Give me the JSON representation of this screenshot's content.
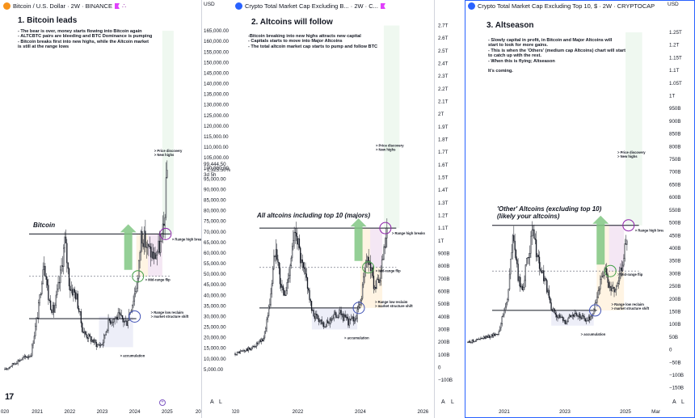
{
  "panels": [
    {
      "title": "Bitcoin / U.S. Dollar · 2W · BINANCE",
      "icon_color": "#f7931a",
      "currency": "USD",
      "heading": "1. Bitcoin leads",
      "notes": [
        "- The bear is over, money starts flowing into Bitcoin again",
        "- ALTCBTC pairs are bleeding and BTC Dominance is pumping",
        "- Bitcoin breaks first into new highs, while the Altcoin market",
        "is still at the range lows"
      ],
      "chart_label": [
        "Bitcoin"
      ],
      "price_readout": [
        "99,444.50",
        "+1,325.50%",
        "3d 5h"
      ],
      "annotations": {
        "price_discovery": [
          "> Price discovery",
          "> New highs"
        ],
        "range_high": "> Range high breaks",
        "mid_range": "> Mid-range flip",
        "range_low": [
          "> Range low reclaim",
          "> market structure shift"
        ],
        "accumulation": "> accumulation"
      },
      "scale_buttons": [
        "A",
        "L"
      ]
    },
    {
      "title": "Crypto Total Market Cap Excluding B... · 2W · C...",
      "icon_color": "#2962ff",
      "currency": "USD",
      "heading": "2. Altcoins will follow",
      "notes": [
        "-Bitcoin breaking into new highs attracts new capital",
        "- Capitals starts to move into Major Altcoins",
        "- The total altcoin market cap starts to pump and follow BTC"
      ],
      "chart_label": [
        "All altcoins including top 10 (majors)"
      ],
      "annotations": {
        "price_discovery": [
          "> Price discovery",
          "> New highs"
        ],
        "range_high": "> Range high breaks",
        "mid_range": "> Mid-range flip",
        "range_low": [
          "> Range low reclaim",
          "> market structure shift"
        ],
        "accumulation": "> accumulation"
      },
      "scale_buttons": [
        "A",
        "L"
      ]
    },
    {
      "title": "Crypto Total Market Cap Excluding Top 10, $ · 2W · CRYPTOCAP",
      "icon_color": "#2962ff",
      "currency": "USD",
      "heading": "3. Altseason",
      "notes": [
        "- Slowly capital in profit, in Bitcoin and Major Altcoins will",
        "start to look for more gains.",
        "- This is when the 'Others' (medium cap Altcoins) chart will start",
        "to catch up with the rest.",
        "- When this is flying; Altseason",
        "",
        "It's coming."
      ],
      "chart_label": [
        "'Other' Altcoins (excluding top 10)",
        "(likely your altcoins)"
      ],
      "annotations": {
        "price_discovery": [
          "> Price discovery",
          "> New highs"
        ],
        "range_high": "> Range high breaks",
        "mid_range": "> Mid-range flip",
        "range_low": [
          "> Range low reclaim",
          "> market structure shift"
        ],
        "accumulation": "> accumulation"
      },
      "scale_buttons": [
        "A",
        "L"
      ]
    }
  ],
  "chart_data": [
    {
      "type": "candlestick",
      "title": "Bitcoin / U.S. Dollar · 2W · BINANCE",
      "ylim": [
        0,
        170000
      ],
      "y_ticks": [
        165000,
        160000,
        155000,
        150000,
        145000,
        140000,
        135000,
        130000,
        125000,
        120000,
        115000,
        110000,
        105000,
        100000,
        95000,
        90000,
        85000,
        80000,
        75000,
        70000,
        65000,
        60000,
        55000,
        50000,
        45000,
        40000,
        35000,
        30000,
        25000,
        20000,
        15000,
        10000,
        5000
      ],
      "y_tick_labels": [
        "165,000.00",
        "160,000.00",
        "155,000.00",
        "150,000.00",
        "145,000.00",
        "140,000.00",
        "135,000.00",
        "130,000.00",
        "125,000.00",
        "120,000.00",
        "115,000.00",
        "110,000.00",
        "105,000.00",
        "100,000.00",
        "95,000.00",
        "90,000.00",
        "85,000.00",
        "80,000.00",
        "75,000.00",
        "70,000.00",
        "65,000.00",
        "60,000.00",
        "55,000.00",
        "50,000.00",
        "45,000.00",
        "40,000.00",
        "35,000.00",
        "30,000.00",
        "25,000.00",
        "20,000.00",
        "15,000.00",
        "10,000.00",
        "5,000.00"
      ],
      "x_ticks": [
        "020",
        "2021",
        "2022",
        "2023",
        "2024",
        "2025",
        "202"
      ],
      "x_tick_values": [
        2020.0,
        2021.0,
        2022.0,
        2023.0,
        2024.0,
        2025.0,
        2026.0
      ],
      "x_range": [
        2020.0,
        2026.0
      ],
      "range_high": 69000,
      "mid_range": 49000,
      "range_low": 29000,
      "circles": [
        {
          "x": 2024.0,
          "y": 30000,
          "color": "#3f51b5"
        },
        {
          "x": 2024.1,
          "y": 49000,
          "color": "#43a047"
        },
        {
          "x": 2024.95,
          "y": 69000,
          "color": "#8e24aa"
        }
      ],
      "zones": {
        "accumulation": [
          2022.9,
          2023.95,
          15500,
          30000
        ],
        "pre_break": [
          2024.05,
          2024.85,
          49000,
          69000
        ],
        "discovery": [
          2024.85,
          2025.2,
          69000,
          165000
        ]
      },
      "trend": [
        [
          2020.0,
          4800
        ],
        [
          2020.4,
          9000
        ],
        [
          2020.8,
          12000
        ],
        [
          2021.05,
          35000
        ],
        [
          2021.2,
          58000
        ],
        [
          2021.35,
          38000
        ],
        [
          2021.5,
          32000
        ],
        [
          2021.7,
          48000
        ],
        [
          2021.85,
          66000
        ],
        [
          2022.0,
          44000
        ],
        [
          2022.2,
          40000
        ],
        [
          2022.4,
          23000
        ],
        [
          2022.6,
          20000
        ],
        [
          2022.85,
          16500
        ],
        [
          2023.0,
          17000
        ],
        [
          2023.2,
          28000
        ],
        [
          2023.5,
          30000
        ],
        [
          2023.75,
          27000
        ],
        [
          2023.95,
          38000
        ],
        [
          2024.1,
          48000
        ],
        [
          2024.2,
          70000
        ],
        [
          2024.4,
          62000
        ],
        [
          2024.6,
          58000
        ],
        [
          2024.8,
          64000
        ],
        [
          2024.9,
          72000
        ],
        [
          2025.0,
          99000
        ]
      ]
    },
    {
      "type": "candlestick",
      "title": "Crypto Total Market Cap Excluding B... · 2W · C...",
      "ylim": [
        -150,
        2780
      ],
      "y_ticks": [
        2700,
        2600,
        2500,
        2400,
        2300,
        2200,
        2100,
        2000,
        1900,
        1800,
        1700,
        1600,
        1500,
        1400,
        1300,
        1200,
        1100,
        1000,
        900,
        800,
        700,
        600,
        500,
        400,
        300,
        200,
        100,
        0,
        -100
      ],
      "y_tick_labels": [
        "2.7T",
        "2.6T",
        "2.5T",
        "2.4T",
        "2.3T",
        "2.2T",
        "2.1T",
        "2T",
        "1.9T",
        "1.8T",
        "1.7T",
        "1.6T",
        "1.5T",
        "1.4T",
        "1.3T",
        "1.2T",
        "1.1T",
        "1T",
        "900B",
        "800B",
        "700B",
        "600B",
        "500B",
        "400B",
        "300B",
        "200B",
        "100B",
        "0",
        "−100B"
      ],
      "x_ticks": [
        "020",
        "2022",
        "2024",
        "2026"
      ],
      "x_tick_values": [
        2020.0,
        2022.0,
        2024.0,
        2026.0
      ],
      "x_range": [
        2020.0,
        2026.3
      ],
      "range_high": 1100,
      "mid_range": 790,
      "range_low": 470,
      "circles": [
        {
          "x": 2023.95,
          "y": 470,
          "color": "#3f51b5"
        },
        {
          "x": 2024.25,
          "y": 790,
          "color": "#43a047"
        },
        {
          "x": 2024.8,
          "y": 1100,
          "color": "#8e24aa"
        }
      ],
      "zones": {
        "accumulation": [
          2022.45,
          2023.9,
          300,
          470
        ],
        "pre_break": [
          2024.0,
          2024.7,
          470,
          1100
        ],
        "discovery": [
          2024.75,
          2025.25,
          1100,
          2700
        ]
      },
      "trend": [
        [
          2020.0,
          110
        ],
        [
          2020.5,
          150
        ],
        [
          2020.9,
          220
        ],
        [
          2021.1,
          500
        ],
        [
          2021.3,
          1000
        ],
        [
          2021.45,
          650
        ],
        [
          2021.6,
          560
        ],
        [
          2021.8,
          900
        ],
        [
          2021.95,
          1100
        ],
        [
          2022.1,
          820
        ],
        [
          2022.3,
          680
        ],
        [
          2022.45,
          430
        ],
        [
          2022.7,
          380
        ],
        [
          2022.9,
          330
        ],
        [
          2023.1,
          400
        ],
        [
          2023.35,
          430
        ],
        [
          2023.6,
          360
        ],
        [
          2023.85,
          390
        ],
        [
          2024.0,
          520
        ],
        [
          2024.15,
          780
        ],
        [
          2024.25,
          880
        ],
        [
          2024.45,
          640
        ],
        [
          2024.6,
          660
        ],
        [
          2024.75,
          900
        ],
        [
          2024.85,
          1050
        ]
      ]
    },
    {
      "type": "candlestick",
      "title": "Crypto Total Market Cap Excluding Top 10, $ · 2W · CRYPTOCAP",
      "ylim": [
        -170,
        1320
      ],
      "y_ticks": [
        1250,
        1200,
        1150,
        1100,
        1050,
        1000,
        950,
        900,
        850,
        800,
        750,
        700,
        650,
        600,
        550,
        500,
        450,
        400,
        350,
        300,
        250,
        200,
        150,
        100,
        50,
        0,
        -50,
        -100,
        -150
      ],
      "y_tick_labels": [
        "1.25T",
        "1.2T",
        "1.15T",
        "1.1T",
        "1.05T",
        "1T",
        "950B",
        "900B",
        "850B",
        "800B",
        "750B",
        "700B",
        "650B",
        "600B",
        "550B",
        "500B",
        "450B",
        "400B",
        "350B",
        "300B",
        "250B",
        "200B",
        "150B",
        "100B",
        "50B",
        "0",
        "−50B",
        "−100B",
        "−150B"
      ],
      "x_ticks": [
        "2021",
        "2023",
        "2025",
        "Mar"
      ],
      "x_tick_values": [
        2021.0,
        2023.0,
        2025.0,
        2026.0
      ],
      "x_range": [
        2019.8,
        2026.2
      ],
      "range_high": 490,
      "mid_range": 310,
      "range_low": 155,
      "circles": [
        {
          "x": 2024.0,
          "y": 155,
          "color": "#3f51b5"
        },
        {
          "x": 2024.5,
          "y": 310,
          "color": "#43a047"
        },
        {
          "x": 2025.1,
          "y": 490,
          "color": "#8e24aa"
        }
      ],
      "zones": {
        "accumulation": [
          2022.55,
          2023.95,
          95,
          155
        ],
        "pre_break": [
          2024.05,
          2024.95,
          155,
          490
        ],
        "discovery": [
          2025.0,
          2025.55,
          490,
          1250
        ]
      },
      "trend": [
        [
          2019.8,
          30
        ],
        [
          2020.3,
          45
        ],
        [
          2020.8,
          65
        ],
        [
          2021.1,
          200
        ],
        [
          2021.3,
          460
        ],
        [
          2021.45,
          280
        ],
        [
          2021.6,
          240
        ],
        [
          2021.8,
          380
        ],
        [
          2021.95,
          460
        ],
        [
          2022.15,
          330
        ],
        [
          2022.35,
          270
        ],
        [
          2022.55,
          160
        ],
        [
          2022.8,
          130
        ],
        [
          2023.0,
          110
        ],
        [
          2023.2,
          140
        ],
        [
          2023.5,
          130
        ],
        [
          2023.75,
          115
        ],
        [
          2023.95,
          150
        ],
        [
          2024.15,
          260
        ],
        [
          2024.3,
          320
        ],
        [
          2024.5,
          230
        ],
        [
          2024.7,
          250
        ],
        [
          2024.85,
          320
        ],
        [
          2024.95,
          380
        ],
        [
          2025.05,
          450
        ]
      ]
    }
  ]
}
